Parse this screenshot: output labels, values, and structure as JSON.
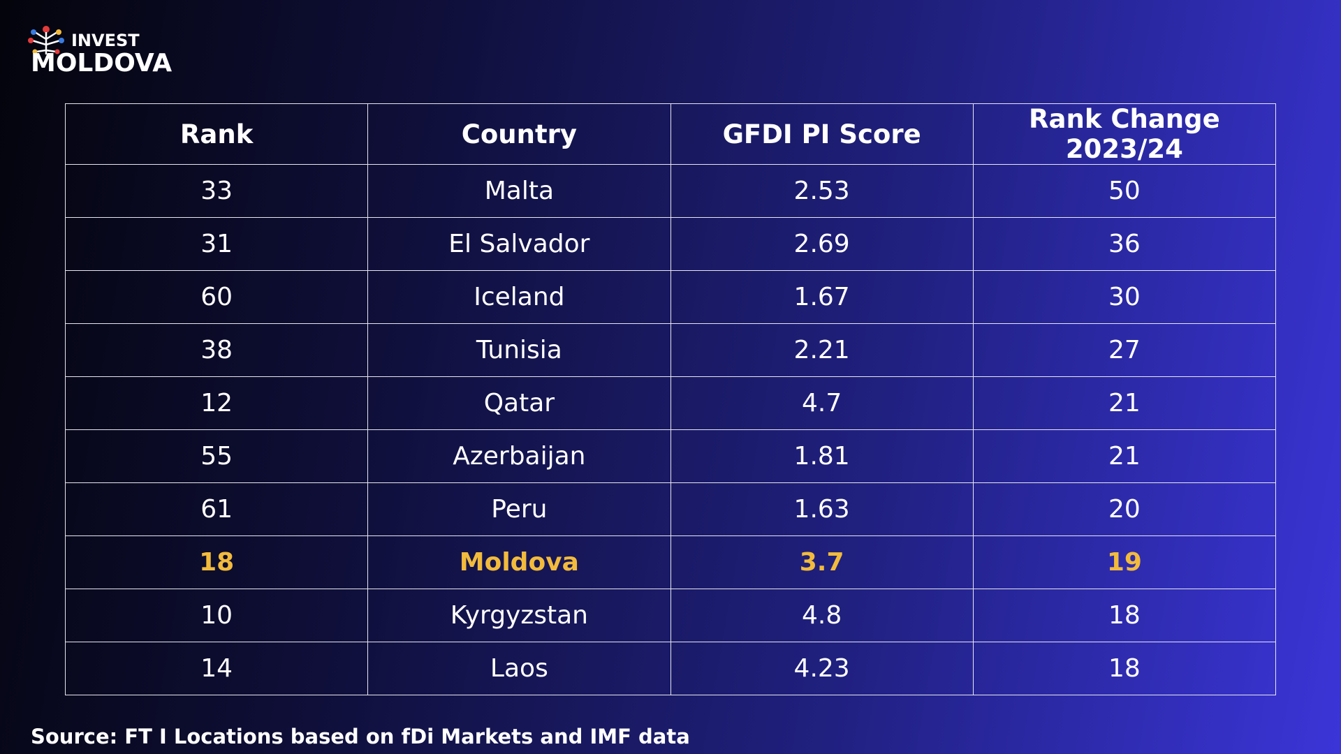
{
  "logo": {
    "line1": "INVEST",
    "line2": "MOLDOVA"
  },
  "table": {
    "header": [
      "Rank",
      "Country",
      "GFDI PI Score",
      "Rank Change 2023/24"
    ],
    "rows": [
      [
        "33",
        "Malta",
        "2.53",
        "50"
      ],
      [
        "31",
        "El Salvador",
        "2.69",
        "36"
      ],
      [
        "60",
        "Iceland",
        "1.67",
        "30"
      ],
      [
        "38",
        "Tunisia",
        "2.21",
        "27"
      ],
      [
        "12",
        "Qatar",
        "4.7",
        "21"
      ],
      [
        "55",
        "Azerbaijan",
        "1.81",
        "21"
      ],
      [
        "61",
        "Peru",
        "1.63",
        "20"
      ],
      [
        "18",
        "Moldova",
        "3.7",
        "19"
      ],
      [
        "10",
        "Kyrgyzstan",
        "4.8",
        "18"
      ],
      [
        "14",
        "Laos",
        "4.23",
        "18"
      ]
    ],
    "highlight_row": 7,
    "highlight_color": "#f2bb3c"
  },
  "source": "Source: FT I Locations based on fDi Markets and IMF data"
}
